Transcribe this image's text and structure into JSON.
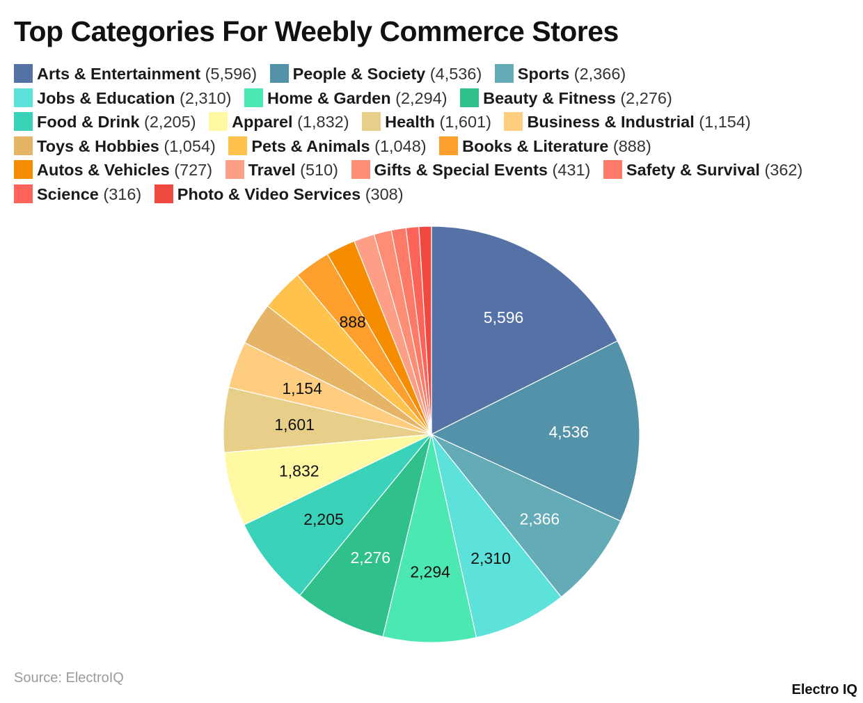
{
  "chart_data": {
    "type": "pie",
    "title": "Top Categories For Weebly Commerce Stores",
    "legend_placement": "top",
    "labels_shown": [
      "5,596",
      "4,536",
      "2,366",
      "2,310",
      "2,294",
      "2,276",
      "2,205",
      "1,832",
      "1,601",
      "1,154",
      "888"
    ],
    "slices": [
      {
        "name": "Arts & Entertainment",
        "value": 5596,
        "label": "5,596",
        "color": "#5572a6",
        "label_color": "#ffffff"
      },
      {
        "name": "People & Society",
        "value": 4536,
        "label": "4,536",
        "color": "#5492a9",
        "label_color": "#ffffff"
      },
      {
        "name": "Sports",
        "value": 2366,
        "label": "2,366",
        "color": "#63abb6",
        "label_color": "#ffffff"
      },
      {
        "name": "Jobs & Education",
        "value": 2310,
        "label": "2,310",
        "color": "#5ce2db",
        "label_color": "#111111"
      },
      {
        "name": "Home & Garden",
        "value": 2294,
        "label": "2,294",
        "color": "#4be8b4",
        "label_color": "#111111"
      },
      {
        "name": "Beauty & Fitness",
        "value": 2276,
        "label": "2,276",
        "color": "#2fc08b",
        "label_color": "#ffffff"
      },
      {
        "name": "Food & Drink",
        "value": 2205,
        "label": "2,205",
        "color": "#3ad3b9",
        "label_color": "#111111"
      },
      {
        "name": "Apparel",
        "value": 1832,
        "label": "1,832",
        "color": "#fff9a3",
        "label_color": "#111111"
      },
      {
        "name": "Health",
        "value": 1601,
        "label": "1,601",
        "color": "#e7cf8a",
        "label_color": "#111111"
      },
      {
        "name": "Business & Industrial",
        "value": 1154,
        "label": "1,154",
        "color": "#fecd7f",
        "label_color": "#111111"
      },
      {
        "name": "Toys & Hobbies",
        "value": 1054,
        "label": "",
        "color": "#e6b466",
        "label_color": "#111111"
      },
      {
        "name": "Pets & Animals",
        "value": 1048,
        "label": "",
        "color": "#fec24d",
        "label_color": "#111111"
      },
      {
        "name": "Books & Literature",
        "value": 888,
        "label": "888",
        "color": "#fd9f2c",
        "label_color": "#111111"
      },
      {
        "name": "Autos & Vehicles",
        "value": 727,
        "label": "",
        "color": "#f68d00",
        "label_color": "#111111"
      },
      {
        "name": "Travel",
        "value": 510,
        "label": "",
        "color": "#fd9f87",
        "label_color": "#111111"
      },
      {
        "name": "Gifts & Special Events",
        "value": 431,
        "label": "",
        "color": "#fd8e75",
        "label_color": "#111111"
      },
      {
        "name": "Safety & Survival",
        "value": 362,
        "label": "",
        "color": "#fd7a68",
        "label_color": "#111111"
      },
      {
        "name": "Science",
        "value": 316,
        "label": "",
        "color": "#fd6359",
        "label_color": "#111111"
      },
      {
        "name": "Photo & Video Services",
        "value": 308,
        "label": "",
        "color": "#f04940",
        "label_color": "#111111"
      }
    ]
  },
  "legend": [
    {
      "name": "Arts & Entertainment",
      "value_text": "5,596",
      "color": "#5572a6"
    },
    {
      "name": "People & Society",
      "value_text": "4,536",
      "color": "#5492a9"
    },
    {
      "name": "Sports",
      "value_text": "2,366",
      "color": "#63abb6"
    },
    {
      "name": "Jobs & Education",
      "value_text": "2,310",
      "color": "#5ce2db"
    },
    {
      "name": "Home & Garden",
      "value_text": "2,294",
      "color": "#4be8b4"
    },
    {
      "name": "Beauty & Fitness",
      "value_text": "2,276",
      "color": "#2fc08b"
    },
    {
      "name": "Food & Drink",
      "value_text": "2,205",
      "color": "#3ad3b9"
    },
    {
      "name": "Apparel",
      "value_text": "1,832",
      "color": "#fff9a3"
    },
    {
      "name": "Health",
      "value_text": "1,601",
      "color": "#e7cf8a"
    },
    {
      "name": "Business & Industrial",
      "value_text": "1,154",
      "color": "#fecd7f"
    },
    {
      "name": "Toys & Hobbies",
      "value_text": "1,054",
      "color": "#e6b466"
    },
    {
      "name": "Pets & Animals",
      "value_text": "1,048",
      "color": "#fec24d"
    },
    {
      "name": "Books & Literature",
      "value_text": "888",
      "color": "#fd9f2c"
    },
    {
      "name": "Autos & Vehicles",
      "value_text": "727",
      "color": "#f68d00"
    },
    {
      "name": "Travel",
      "value_text": "510",
      "color": "#fd9f87"
    },
    {
      "name": "Gifts & Special Events",
      "value_text": "431",
      "color": "#fd8e75"
    },
    {
      "name": "Safety & Survival",
      "value_text": "362",
      "color": "#fd7a68"
    },
    {
      "name": "Science",
      "value_text": "316",
      "color": "#fd6359"
    },
    {
      "name": "Photo & Video Services",
      "value_text": "308",
      "color": "#f04940"
    }
  ],
  "footer": {
    "source": "Source: ElectroIQ",
    "brand": "Electro IQ"
  }
}
